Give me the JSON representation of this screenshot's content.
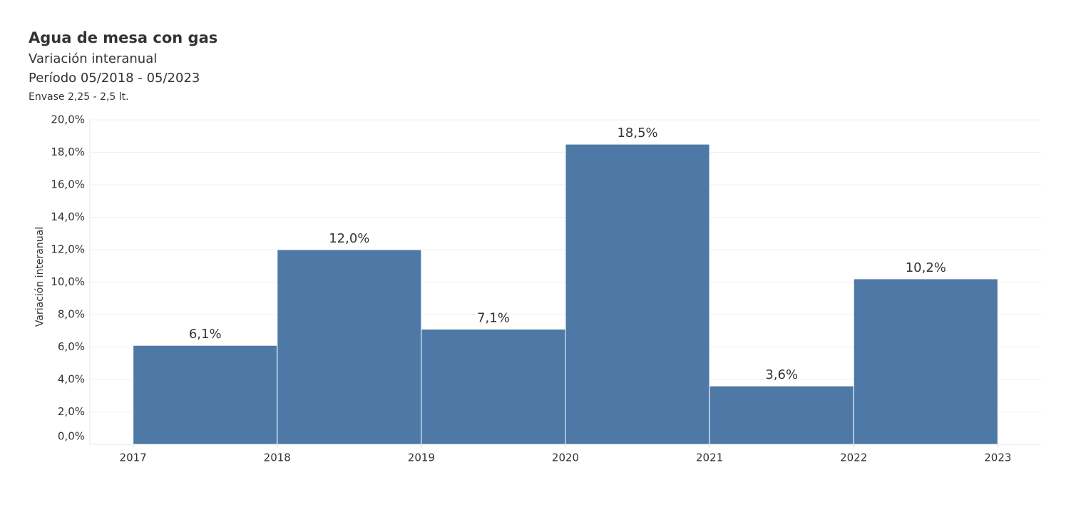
{
  "chart_data": {
    "type": "histogram",
    "title": "Agua de mesa con gas",
    "subtitle": "Variación interanual",
    "period": "Período 05/2018 - 05/2023",
    "note": "Envase 2,25 - 2,5 lt.",
    "y_label": "Variación interanual",
    "bins": [
      2017,
      2018,
      2019,
      2020,
      2021,
      2022,
      2023
    ],
    "values": [
      6.1,
      12.0,
      7.1,
      18.5,
      3.6,
      10.2
    ],
    "value_labels": [
      "6,1%",
      "12,0%",
      "7,1%",
      "18,5%",
      "3,6%",
      "10,2%"
    ],
    "color": "#4e79a7",
    "xlim": [
      2016.7,
      2023.3
    ],
    "xticks": [
      2017,
      2018,
      2019,
      2020,
      2021,
      2022,
      2023
    ],
    "ylim": [
      0,
      20
    ],
    "yticks": [
      {
        "value": 0,
        "label": "0,0%"
      },
      {
        "value": 2,
        "label": "2,0%"
      },
      {
        "value": 4,
        "label": "4,0%"
      },
      {
        "value": 6,
        "label": "6,0%"
      },
      {
        "value": 8,
        "label": "8,0%"
      },
      {
        "value": 10,
        "label": "10,0%"
      },
      {
        "value": 12,
        "label": "12,0%"
      },
      {
        "value": 14,
        "label": "14,0%"
      },
      {
        "value": 16,
        "label": "16,0%"
      },
      {
        "value": 18,
        "label": "18,0%"
      },
      {
        "value": 20,
        "label": "20,0%"
      }
    ],
    "grid": true
  }
}
